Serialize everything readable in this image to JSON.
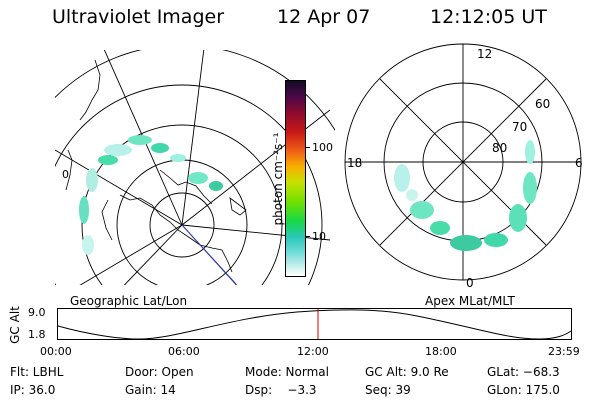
{
  "header": {
    "instrument": "Ultraviolet Imager",
    "date": "12 Apr 07",
    "time": "12:12:05 UT"
  },
  "colorbar": {
    "unit_label": "photon cm⁻²s⁻¹",
    "ticks": [
      "100",
      "10"
    ]
  },
  "panels": {
    "geographic_label": "Geographic Lat/Lon",
    "geographic_lon_label": "0",
    "apex_label": "Apex MLat/MLT",
    "mlt_labels": {
      "top": "12",
      "left": "18",
      "right": "6",
      "bottom": "0"
    },
    "mlat_labels": [
      "60",
      "70",
      "80"
    ]
  },
  "altitude_plot": {
    "axis_label": "GC Alt",
    "y_ticks": [
      "9.0",
      "1.8"
    ],
    "x_ticks": [
      "00:00",
      "06:00",
      "12:00",
      "18:00",
      "23:59"
    ],
    "marker_color": "#d00000"
  },
  "status": {
    "flt": "Flt: LBHL",
    "door": "Door: Open",
    "mode": "Mode: Normal",
    "gc_alt": "GC Alt: 9.0 Re",
    "glat": "GLat: −68.3",
    "ip": "IP: 36.0",
    "gain": "Gain: 14",
    "dsp": "Dsp:    −3.3",
    "seq": "Seq: 39",
    "glon": "GLon: 175.0"
  }
}
